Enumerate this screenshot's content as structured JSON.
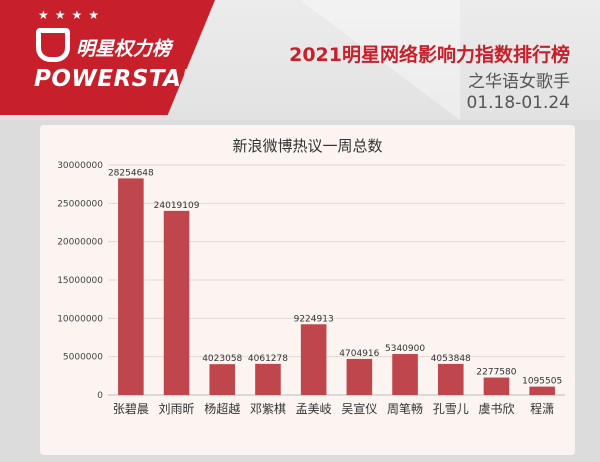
{
  "header": {
    "logo_cn": "明星权力榜",
    "logo_en": "POWERSTAR",
    "logo_stars": "★★★★",
    "title": "2021明星网络影响力指数排行榜",
    "subtitle": "之华语女歌手",
    "date_range": "01.18-01.24"
  },
  "colors": {
    "accent": "#c8202b",
    "bar": "#c0464d",
    "panel": "#fbf4f1"
  },
  "chart_data": {
    "type": "bar",
    "title": "新浪微博热议一周总数",
    "categories": [
      "张碧晨",
      "刘雨昕",
      "杨超越",
      "邓紫棋",
      "孟美岐",
      "吴宣仪",
      "周笔畅",
      "孔雪儿",
      "虞书欣",
      "程潇"
    ],
    "values": [
      28254648,
      24019109,
      4023058,
      4061278,
      9224913,
      4704916,
      5340900,
      4053848,
      2277580,
      1095505
    ],
    "value_labels": [
      "28254648",
      "24019109",
      "4023058",
      "4061278",
      "9224913",
      "4704916",
      "5340900",
      "4053848",
      "2277580",
      "1095505"
    ],
    "ylim": [
      0,
      30000000
    ],
    "yticks": [
      0,
      5000000,
      10000000,
      15000000,
      20000000,
      25000000,
      30000000
    ],
    "ytick_labels": [
      "0",
      "5000000",
      "10000000",
      "15000000",
      "20000000",
      "25000000",
      "30000000"
    ],
    "grid": true,
    "legend": "none"
  }
}
